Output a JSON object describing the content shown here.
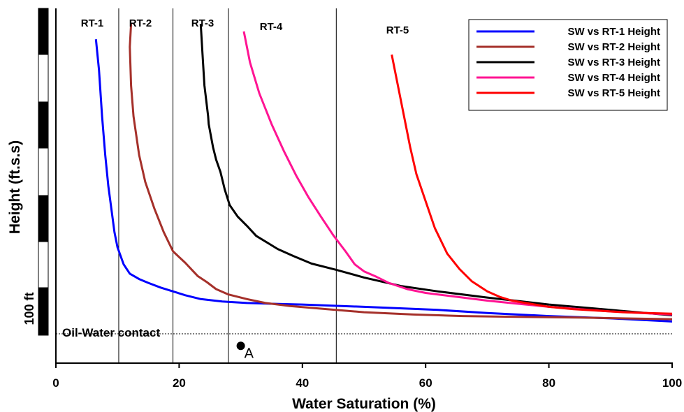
{
  "chart_data": {
    "type": "line",
    "xlabel": "Water Saturation (%)",
    "ylabel": "Height (ft.s.s)",
    "xlim": [
      0,
      100
    ],
    "x_ticks": [
      "0",
      "20",
      "40",
      "60",
      "80",
      "100"
    ],
    "grid": false,
    "legend_position": "top-right",
    "scale_bar_label": "100 ft",
    "contact_label": "Oil-Water contact",
    "point_label": "A",
    "point": {
      "x": 30,
      "y": 2.6
    },
    "rock_type_labels": [
      "RT-1",
      "RT-2",
      "RT-3",
      "RT-4",
      "RT-5"
    ],
    "rock_type_boundaries": [
      10.2,
      19,
      28,
      45.5
    ],
    "series": [
      {
        "name": "SW vs RT-1 Height",
        "color": "#0000ff",
        "points": [
          [
            6.5,
            42
          ],
          [
            7,
            38
          ],
          [
            7.5,
            32
          ],
          [
            8,
            27
          ],
          [
            8.5,
            23
          ],
          [
            9,
            20
          ],
          [
            9.5,
            17
          ],
          [
            10,
            15
          ],
          [
            11,
            12.8
          ],
          [
            12,
            11.6
          ],
          [
            13.5,
            10.9
          ],
          [
            15,
            10.4
          ],
          [
            17,
            9.8
          ],
          [
            19,
            9.3
          ],
          [
            21,
            8.8
          ],
          [
            23.5,
            8.3
          ],
          [
            27,
            8
          ],
          [
            31,
            7.8
          ],
          [
            35,
            7.7
          ],
          [
            40,
            7.6
          ],
          [
            50,
            7.3
          ],
          [
            62,
            6.9
          ],
          [
            70,
            6.5
          ],
          [
            80,
            6.1
          ],
          [
            90,
            5.8
          ],
          [
            100,
            5.4
          ]
        ]
      },
      {
        "name": "SW vs RT-2 Height",
        "color": "#a5302a",
        "points": [
          [
            12.2,
            44
          ],
          [
            12,
            41
          ],
          [
            12.2,
            36
          ],
          [
            12.6,
            32
          ],
          [
            13.5,
            27
          ],
          [
            14.5,
            23.5
          ],
          [
            16,
            20
          ],
          [
            17.5,
            17
          ],
          [
            19,
            14.5
          ],
          [
            21,
            13
          ],
          [
            23,
            11.3
          ],
          [
            24.5,
            10.5
          ],
          [
            26,
            9.6
          ],
          [
            28,
            8.9
          ],
          [
            31,
            8.3
          ],
          [
            34,
            7.8
          ],
          [
            38,
            7.4
          ],
          [
            44,
            7
          ],
          [
            50,
            6.6
          ],
          [
            58,
            6.3
          ],
          [
            66,
            6.1
          ],
          [
            75,
            6
          ],
          [
            85,
            5.9
          ],
          [
            100,
            5.7
          ]
        ]
      },
      {
        "name": "SW vs RT-3 Height",
        "color": "#000000",
        "points": [
          [
            23.5,
            44
          ],
          [
            23.8,
            40
          ],
          [
            24.1,
            36
          ],
          [
            24.7,
            32
          ],
          [
            24.8,
            31
          ],
          [
            25.5,
            28
          ],
          [
            26,
            26.4
          ],
          [
            26.7,
            24.8
          ],
          [
            27.4,
            22.5
          ],
          [
            28.2,
            20.5
          ],
          [
            29.5,
            19
          ],
          [
            31,
            17.8
          ],
          [
            32.5,
            16.5
          ],
          [
            36,
            14.8
          ],
          [
            38.5,
            13.9
          ],
          [
            41.5,
            12.9
          ],
          [
            45.5,
            12.1
          ],
          [
            50,
            11.1
          ],
          [
            56,
            10
          ],
          [
            62,
            9.3
          ],
          [
            70,
            8.5
          ],
          [
            80,
            7.6
          ],
          [
            90,
            6.9
          ],
          [
            100,
            6.2
          ]
        ]
      },
      {
        "name": "SW vs RT-4 Height",
        "color": "#ff1493",
        "points": [
          [
            30.5,
            43
          ],
          [
            31.5,
            39
          ],
          [
            33,
            35
          ],
          [
            35,
            31
          ],
          [
            37,
            27.5
          ],
          [
            39,
            24.3
          ],
          [
            41,
            21.5
          ],
          [
            43,
            19
          ],
          [
            45,
            16.6
          ],
          [
            47,
            14.5
          ],
          [
            48.5,
            12.8
          ],
          [
            50,
            11.9
          ],
          [
            52,
            11.2
          ],
          [
            54,
            10.4
          ],
          [
            57,
            9.6
          ],
          [
            60,
            9.1
          ],
          [
            65,
            8.6
          ],
          [
            70,
            8.1
          ],
          [
            75,
            7.7
          ],
          [
            80,
            7.3
          ],
          [
            85,
            7
          ],
          [
            90,
            6.7
          ],
          [
            95,
            6.5
          ],
          [
            100,
            6.3
          ]
        ]
      },
      {
        "name": "SW vs RT-5 Height",
        "color": "#ff0000",
        "points": [
          [
            54.5,
            40
          ],
          [
            55.5,
            36
          ],
          [
            56.5,
            32
          ],
          [
            57.5,
            28
          ],
          [
            58.5,
            24.5
          ],
          [
            60,
            21
          ],
          [
            61.5,
            17.5
          ],
          [
            63.5,
            14.2
          ],
          [
            65.5,
            12.2
          ],
          [
            67.5,
            10.6
          ],
          [
            70,
            9.3
          ],
          [
            72,
            8.6
          ],
          [
            74,
            8.1
          ],
          [
            77,
            7.7
          ],
          [
            80,
            7.3
          ],
          [
            84,
            7
          ],
          [
            88,
            6.8
          ],
          [
            92,
            6.6
          ],
          [
            96,
            6.5
          ],
          [
            100,
            6.4
          ]
        ]
      }
    ]
  }
}
